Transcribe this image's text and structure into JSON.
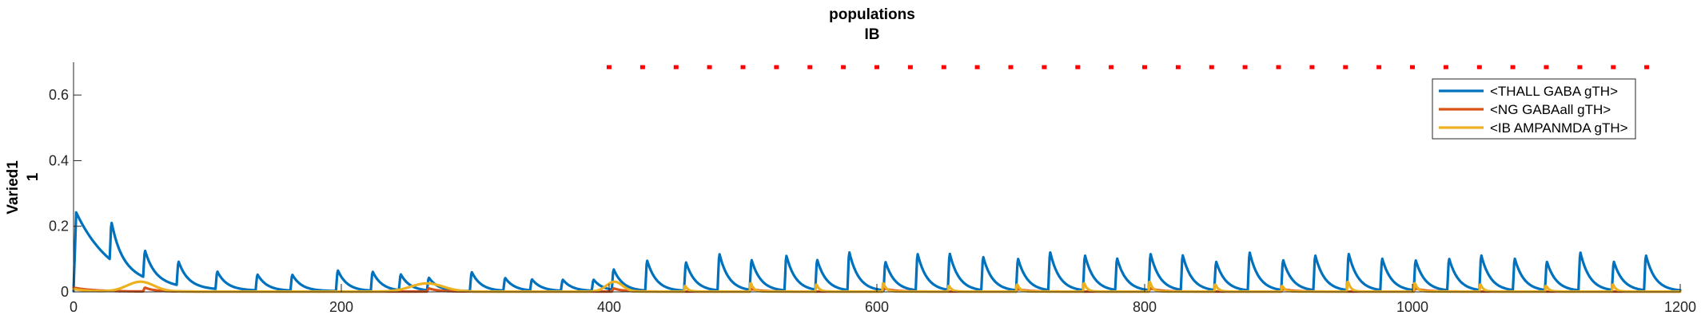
{
  "chart_data": {
    "type": "line",
    "title": "populations",
    "subtitle": "IB",
    "ylabel": "Varied1",
    "ylabel2": "1",
    "xlabel": "",
    "xlim": [
      0,
      1200
    ],
    "ylim": [
      0,
      0.7
    ],
    "xticks": [
      0,
      200,
      400,
      600,
      800,
      1000,
      1200
    ],
    "yticks": [
      0,
      0.2,
      0.4,
      0.6
    ],
    "ytick_labels": [
      "0",
      "0.2",
      "0.4",
      "0.6"
    ],
    "grid": false,
    "legend_position": "top-right",
    "series": [
      {
        "name": "<THALL GABA gTH>",
        "color": "#0072BD",
        "initial": {
          "t": 2,
          "peak": 0.24,
          "tau": 28
        },
        "pulses": [
          {
            "t": 27,
            "h": 0.12
          },
          {
            "t": 52,
            "h": 0.085
          },
          {
            "t": 77,
            "h": 0.075
          },
          {
            "t": 106,
            "h": 0.055
          },
          {
            "t": 136,
            "h": 0.05
          },
          {
            "t": 162,
            "h": 0.05
          },
          {
            "t": 196,
            "h": 0.065
          },
          {
            "t": 222,
            "h": 0.06
          },
          {
            "t": 243,
            "h": 0.05
          },
          {
            "t": 264,
            "h": 0.04
          },
          {
            "t": 296,
            "h": 0.06
          },
          {
            "t": 321,
            "h": 0.04
          },
          {
            "t": 341,
            "h": 0.035
          },
          {
            "t": 364,
            "h": 0.035
          },
          {
            "t": 387,
            "h": 0.035
          },
          {
            "t": 402,
            "h": 0.065
          },
          {
            "t": 427,
            "h": 0.095
          },
          {
            "t": 456,
            "h": 0.09
          },
          {
            "t": 481,
            "h": 0.115
          },
          {
            "t": 505,
            "h": 0.095
          },
          {
            "t": 531,
            "h": 0.11
          },
          {
            "t": 554,
            "h": 0.095
          },
          {
            "t": 578,
            "h": 0.12
          },
          {
            "t": 605,
            "h": 0.09
          },
          {
            "t": 629,
            "h": 0.115
          },
          {
            "t": 653,
            "h": 0.115
          },
          {
            "t": 678,
            "h": 0.105
          },
          {
            "t": 704,
            "h": 0.1
          },
          {
            "t": 728,
            "h": 0.12
          },
          {
            "t": 754,
            "h": 0.11
          },
          {
            "t": 778,
            "h": 0.1
          },
          {
            "t": 803,
            "h": 0.115
          },
          {
            "t": 827,
            "h": 0.11
          },
          {
            "t": 852,
            "h": 0.09
          },
          {
            "t": 877,
            "h": 0.12
          },
          {
            "t": 902,
            "h": 0.095
          },
          {
            "t": 926,
            "h": 0.11
          },
          {
            "t": 951,
            "h": 0.115
          },
          {
            "t": 976,
            "h": 0.1
          },
          {
            "t": 1001,
            "h": 0.095
          },
          {
            "t": 1026,
            "h": 0.1
          },
          {
            "t": 1050,
            "h": 0.11
          },
          {
            "t": 1075,
            "h": 0.1
          },
          {
            "t": 1099,
            "h": 0.09
          },
          {
            "t": 1124,
            "h": 0.12
          },
          {
            "t": 1149,
            "h": 0.09
          },
          {
            "t": 1173,
            "h": 0.11
          }
        ]
      },
      {
        "name": "<NG GABAall gTH>",
        "color": "#D95319",
        "initial": {
          "t": 0,
          "peak": 0.012,
          "tau": 15
        },
        "pulses": [
          {
            "t": 52,
            "h": 0.012
          },
          {
            "t": 264,
            "h": 0.01
          },
          {
            "t": 402,
            "h": 0.01
          },
          {
            "t": 505,
            "h": 0.008
          },
          {
            "t": 604,
            "h": 0.01
          },
          {
            "t": 704,
            "h": 0.008
          },
          {
            "t": 803,
            "h": 0.01
          },
          {
            "t": 902,
            "h": 0.008
          },
          {
            "t": 1001,
            "h": 0.01
          }
        ]
      },
      {
        "name": "<IB AMPANMDA gTH>",
        "color": "#EDB120",
        "initial": {
          "t": 0,
          "peak": 0.008,
          "tau": 10
        },
        "bumps": [
          {
            "t": 50,
            "h": 0.03,
            "w": 10
          },
          {
            "t": 264,
            "h": 0.025,
            "w": 12
          },
          {
            "t": 404,
            "h": 0.03,
            "w": 6
          }
        ],
        "spikes": [
          {
            "t": 456,
            "h": 0.02
          },
          {
            "t": 505,
            "h": 0.03
          },
          {
            "t": 554,
            "h": 0.025
          },
          {
            "t": 604,
            "h": 0.03
          },
          {
            "t": 653,
            "h": 0.02
          },
          {
            "t": 704,
            "h": 0.025
          },
          {
            "t": 754,
            "h": 0.03
          },
          {
            "t": 803,
            "h": 0.035
          },
          {
            "t": 852,
            "h": 0.025
          },
          {
            "t": 902,
            "h": 0.02
          },
          {
            "t": 951,
            "h": 0.035
          },
          {
            "t": 1001,
            "h": 0.03
          },
          {
            "t": 1050,
            "h": 0.025
          },
          {
            "t": 1099,
            "h": 0.02
          },
          {
            "t": 1149,
            "h": 0.025
          }
        ]
      }
    ],
    "spike_raster": {
      "color": "#FF0000",
      "y": 0.685,
      "times": [
        400,
        425,
        450,
        475,
        500,
        525,
        550,
        575,
        600,
        625,
        650,
        675,
        700,
        725,
        750,
        775,
        800,
        825,
        850,
        875,
        900,
        925,
        950,
        975,
        1000,
        1025,
        1050,
        1075,
        1100,
        1125,
        1150,
        1175
      ]
    }
  }
}
